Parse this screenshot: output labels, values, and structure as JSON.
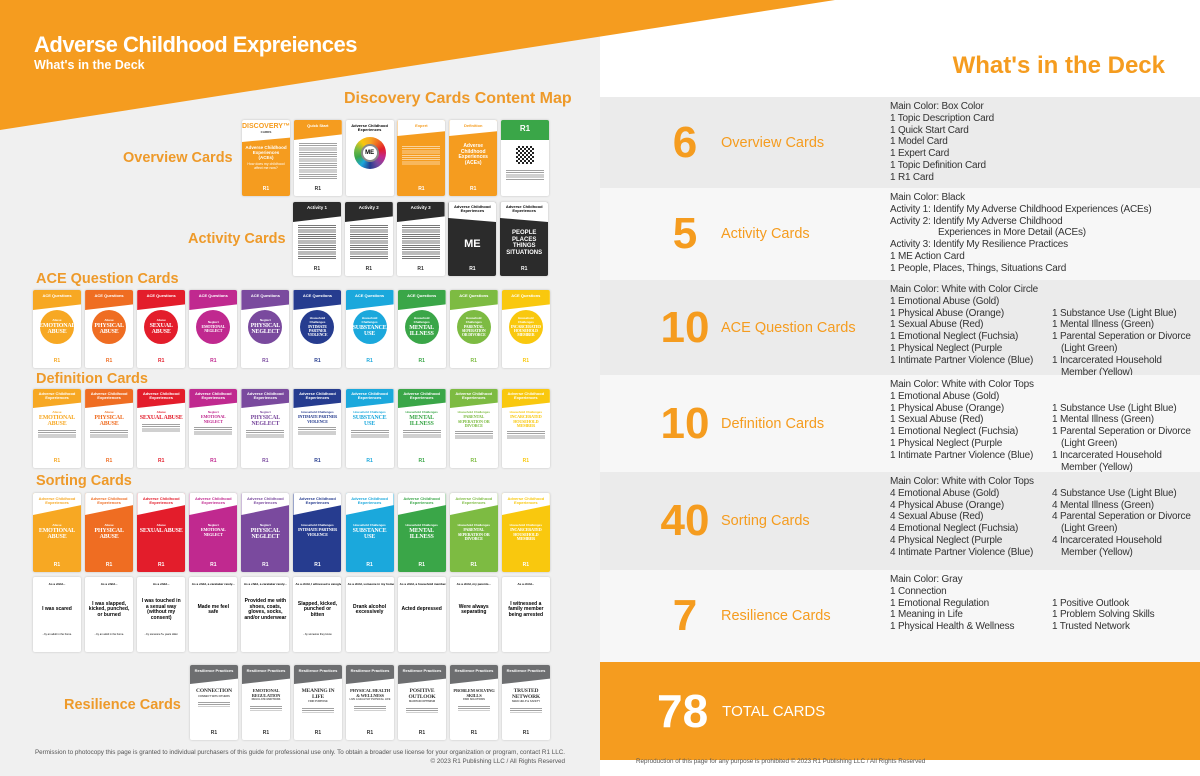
{
  "header": {
    "title": "Adverse Childhood Expreiences",
    "subtitle": "What's in the Deck"
  },
  "map_title": "Discovery Cards Content Map",
  "categories": {
    "overview": "Overview Cards",
    "activity": "Activity Cards",
    "ace": "ACE Question Cards",
    "definition": "Definition Cards",
    "sorting": "Sorting Cards",
    "resilience": "Resilience Cards"
  },
  "colors": {
    "brand": "#f59c1f",
    "gold": "#f7a823",
    "orange": "#ef6d22",
    "red": "#e31d2b",
    "fuchsia": "#c0298f",
    "purple": "#7a4a9e",
    "blue": "#263c8f",
    "light_blue": "#1ba8dc",
    "green": "#3aa648",
    "light_green": "#7dbb42",
    "yellow": "#f9c80e",
    "gray": "#6d6e70"
  },
  "logo": "R1",
  "overview_cards": [
    {
      "type": "discovery",
      "brand": "DISCOVERY™",
      "brand_sub": "CARDS",
      "title": "Adverse Childhood Experiences (ACEs)",
      "text": "How does my childhood affect me now?"
    },
    {
      "type": "quick",
      "header": "Quick Start"
    },
    {
      "type": "model",
      "header": "Adverse Childhood Experiences",
      "center": "ME"
    },
    {
      "type": "expert",
      "header": "Expert"
    },
    {
      "type": "definition",
      "header": "Definition",
      "title": "Adverse Childhood Experiences (ACEs)"
    },
    {
      "type": "r1",
      "header": "R1"
    }
  ],
  "activity_cards": [
    {
      "type": "activity",
      "header": "Activity 1"
    },
    {
      "type": "activity",
      "header": "Activity 2"
    },
    {
      "type": "activity",
      "header": "Activity 3"
    },
    {
      "type": "dark",
      "header": "Adverse Childhood Experiences",
      "title": "ME"
    },
    {
      "type": "dark",
      "header": "Adverse Childhood Experiences",
      "title": "PEOPLE PLACES THINGS SITUATIONS"
    }
  ],
  "ace_header": "ACE Questions",
  "def_header": "Adverse Childhood Experiences",
  "topics": [
    {
      "sub": "Abuse",
      "title": "EMOTIONAL ABUSE",
      "color": "#f7a823"
    },
    {
      "sub": "Abuse",
      "title": "PHYSICAL ABUSE",
      "color": "#ef6d22"
    },
    {
      "sub": "Abuse",
      "title": "SEXUAL ABUSE",
      "color": "#e31d2b"
    },
    {
      "sub": "Neglect",
      "title": "EMOTIONAL NEGLECT",
      "color": "#c0298f"
    },
    {
      "sub": "Neglect",
      "title": "PHYSICAL NEGLECT",
      "color": "#7a4a9e"
    },
    {
      "sub": "Household Challenges",
      "title": "INTIMATE PARTNER VIOLENCE",
      "color": "#263c8f"
    },
    {
      "sub": "Household Challenges",
      "title": "SUBSTANCE USE",
      "color": "#1ba8dc"
    },
    {
      "sub": "Household Challenges",
      "title": "MENTAL ILLNESS",
      "color": "#3aa648"
    },
    {
      "sub": "Household Challenges",
      "title": "PARENTAL SEPERATION OR DIVORCE",
      "color": "#7dbb42"
    },
    {
      "sub": "Household Challenges",
      "title": "INCARCERATED HOUSEHOLD MEMBER",
      "color": "#f9c80e"
    }
  ],
  "sorting_statements": [
    {
      "prompt": "As a child...",
      "text": "I was scared",
      "suffix": "...by an adult in the home."
    },
    {
      "prompt": "As a child...",
      "text": "I was slapped, kicked, punched, or burned",
      "suffix": "...by an adult in the home."
    },
    {
      "prompt": "As a child...",
      "text": "I was touched in a sexual way (without my consent)",
      "suffix": "...by someone 5+ years older."
    },
    {
      "prompt": "As a child, a caretaker rarely...",
      "text": "Made me feel safe",
      "suffix": ""
    },
    {
      "prompt": "As a child, a caretaker rarely...",
      "text": "Provided me with shoes, coats, gloves, socks, and/or underwear",
      "suffix": ""
    },
    {
      "prompt": "As a child, I witnessed a caregiver...",
      "text": "Slapped, kicked, punched or bitten",
      "suffix": "...by someone they know."
    },
    {
      "prompt": "As a child, someone in my home...",
      "text": "Drank alcohol excessively",
      "suffix": ""
    },
    {
      "prompt": "As a child, a household member...",
      "text": "Acted depressed",
      "suffix": ""
    },
    {
      "prompt": "As a child, my parents...",
      "text": "Were always separating",
      "suffix": ""
    },
    {
      "prompt": "As a child...",
      "text": "I witnessed a family member being arrested",
      "suffix": ""
    }
  ],
  "resilience_header": "Resilience Practices",
  "resilience_cards": [
    {
      "title": "CONNECTION",
      "sub": "CONNECT WITH OTHERS"
    },
    {
      "title": "EMOTIONAL REGULATION",
      "sub": "REGULATE EMOTIONS"
    },
    {
      "title": "MEANING IN LIFE",
      "sub": "FIND PURPOSE"
    },
    {
      "title": "PHYSICAL HEALTH & WELLNESS",
      "sub": "LIVE A HEALTHY PHYSICAL LIFE"
    },
    {
      "title": "POSITIVE OUTLOOK",
      "sub": "MAINTAIN OPTIMISM"
    },
    {
      "title": "PROBLEM SOLVING SKILLS",
      "sub": "FIND SOLUTIONS"
    },
    {
      "title": "TRUSTED NETWORK",
      "sub": "SEEK HELP & SAFETY"
    }
  ],
  "footer_left": [
    "Permission to photocopy this page is granted to individual purchasers of this guide for professional use only. To obtain a broader use license for your organization or program, contact R1 LLC.",
    "© 2023 R1 Publishing LLC / All Rights Reserved"
  ],
  "deck": {
    "title": "What's in the Deck",
    "rows": [
      {
        "count": "6",
        "label": "Overview Cards",
        "heading": "Main Color: Box Color",
        "col1": [
          "1 Topic Description Card",
          "1 Quick Start Card",
          "1 Model Card",
          "1 Expert Card",
          "1 Topic Definition Card",
          "1 R1 Card"
        ],
        "col2": []
      },
      {
        "count": "5",
        "label": "Activity Cards",
        "heading": "Main Color: Black",
        "col1": [
          "Activity 1: Identify My Adverse Childhood Experiences (ACEs)",
          "Activity 2: Identify My Adverse Childhood",
          "Experiences in More Detail (ACEs)",
          "Activity 3: Identify My Resilience Practices",
          "1 ME Action Card",
          "1 People, Places, Things, Situations Card"
        ],
        "col2": []
      },
      {
        "count": "10",
        "label": "ACE Question Cards",
        "heading": "Main Color: White with Color Circle",
        "col1": [
          "1 Emotional Abuse (Gold)",
          "1 Physical Abuse (Orange)",
          "1 Sexual Abuse (Red)",
          "1 Emotional Neglect (Fuchsia)",
          "1 Physical Neglect (Purple",
          "1 Intimate Partner Violence (Blue)"
        ],
        "col2": [
          "1 Substance Use (Light Blue)",
          "1 Mental Illness (Green)",
          "1 Parental Seperation or Divorce (Light Green)",
          "1 Incarcerated Household Member (Yellow)"
        ]
      },
      {
        "count": "10",
        "label": "Definition Cards",
        "heading": "Main Color: White with Color Tops",
        "col1": [
          "1 Emotional Abuse (Gold)",
          "1 Physical Abuse (Orange)",
          "1 Sexual Abuse (Red)",
          "1 Emotional Neglect (Fuchsia)",
          "1 Physical Neglect (Purple",
          "1 Intimate Partner Violence (Blue)"
        ],
        "col2": [
          "1 Substance Use (Light Blue)",
          "1 Mental Illness (Green)",
          "1 Parental Seperation or Divorce (Light Green)",
          "1 Incarcerated Household Member (Yellow)"
        ]
      },
      {
        "count": "40",
        "label": "Sorting Cards",
        "heading": "Main Color: White with Color Tops",
        "col1": [
          "4 Emotional Abuse (Gold)",
          "4 Physical Abuse (Orange)",
          "4 Sexual Abuse (Red)",
          "4 Emotional Neglect (Fuchsia)",
          "4 Physical Neglect (Purple",
          "4 Intimate Partner Violence (Blue)"
        ],
        "col2": [
          "4 Substance Use (Light Blue)",
          "4 Mental Illness (Green)",
          "4 Parental Seperation or Divorce (Light Green)",
          "4 Incarcerated Household Member (Yellow)"
        ]
      },
      {
        "count": "7",
        "label": "Resilience Cards",
        "heading": "Main Color: Gray",
        "col1": [
          "1 Connection",
          "1 Emotional Regulation",
          "1 Meaning in Life",
          "1 Physical Health & Wellness"
        ],
        "col2": [
          "1 Positive Outlook",
          "1 Problem Solving Skills",
          "1 Trusted Network"
        ]
      }
    ],
    "total_count": "78",
    "total_label": "TOTAL CARDS",
    "footer": "Reproduction of this page for any purpose is prohibited © 2023 R1 Publishing LLC / All Rights Reserved"
  }
}
